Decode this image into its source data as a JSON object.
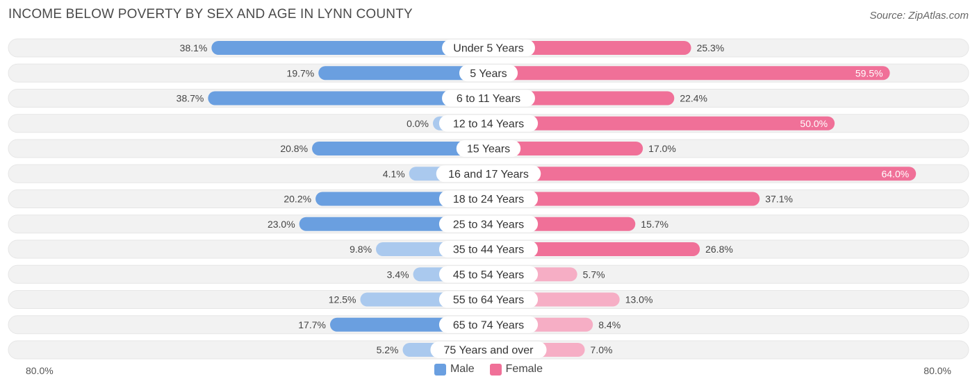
{
  "title": "INCOME BELOW POVERTY BY SEX AND AGE IN LYNN COUNTY",
  "source": "Source: ZipAtlas.com",
  "colors": {
    "male": "#6a9fe0",
    "male_light": "#aac9ee",
    "female": "#f07098",
    "female_light": "#f6aec5",
    "track": "#f2f2f2"
  },
  "chart_data": {
    "type": "bar",
    "orientation": "horizontal-diverging",
    "categories": [
      "Under 5 Years",
      "5 Years",
      "6 to 11 Years",
      "12 to 14 Years",
      "15 Years",
      "16 and 17 Years",
      "18 to 24 Years",
      "25 to 34 Years",
      "35 to 44 Years",
      "45 to 54 Years",
      "55 to 64 Years",
      "65 to 74 Years",
      "75 Years and over"
    ],
    "series": [
      {
        "name": "Male",
        "values": [
          38.1,
          19.7,
          38.7,
          0.0,
          20.8,
          4.1,
          20.2,
          23.0,
          9.8,
          3.4,
          12.5,
          17.7,
          5.2
        ]
      },
      {
        "name": "Female",
        "values": [
          25.3,
          59.5,
          22.4,
          50.0,
          17.0,
          64.0,
          37.1,
          15.7,
          26.8,
          5.7,
          13.0,
          8.4,
          7.0
        ]
      }
    ],
    "xlim": [
      -80,
      80
    ],
    "axis_min_label": "80.0%",
    "axis_max_label": "80.0%"
  },
  "legend": {
    "male": "Male",
    "female": "Female"
  }
}
